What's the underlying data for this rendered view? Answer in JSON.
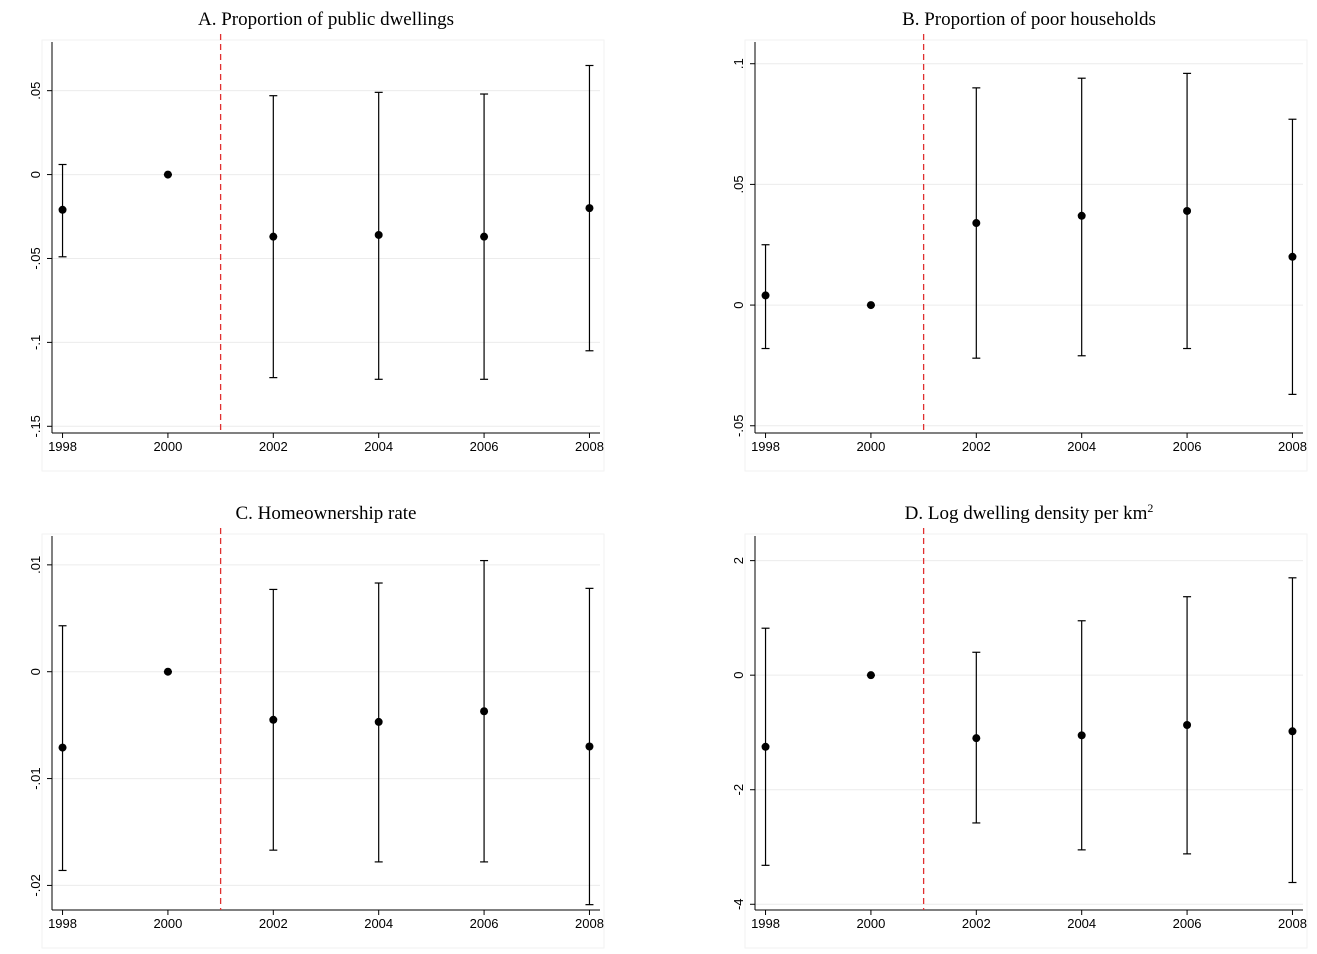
{
  "chart_data": [
    {
      "type": "errorbar",
      "title": "A. Proportion of public dwellings",
      "x": [
        1998,
        2000,
        2002,
        2004,
        2006,
        2008
      ],
      "values": [
        -0.021,
        0,
        -0.037,
        -0.036,
        -0.037,
        -0.02
      ],
      "ci_low": [
        -0.049,
        0,
        -0.121,
        -0.122,
        -0.122,
        -0.105
      ],
      "ci_high": [
        0.006,
        0,
        0.047,
        0.049,
        0.048,
        0.065
      ],
      "color": "#000000",
      "vline": 2001,
      "vline_color": "#e03030",
      "xlim": [
        1997.8,
        2008.2
      ],
      "xticks": [
        1998,
        2000,
        2002,
        2004,
        2006,
        2008
      ],
      "ylim": [
        -0.154,
        0.079
      ],
      "yticks": [
        {
          "value": -0.15,
          "label": "-.15"
        },
        {
          "value": -0.1,
          "label": "-.1"
        },
        {
          "value": -0.05,
          "label": "-.05"
        },
        0,
        {
          "value": 0.05,
          "label": ".05"
        }
      ],
      "grid": true
    },
    {
      "type": "errorbar",
      "title": "B. Proportion of poor households",
      "x": [
        1998,
        2000,
        2002,
        2004,
        2006,
        2008
      ],
      "values": [
        0.004,
        0,
        0.034,
        0.037,
        0.039,
        0.02
      ],
      "ci_low": [
        -0.018,
        0,
        -0.022,
        -0.021,
        -0.018,
        -0.037
      ],
      "ci_high": [
        0.025,
        0,
        0.09,
        0.094,
        0.096,
        0.077
      ],
      "color": "#000000",
      "vline": 2001,
      "vline_color": "#e03030",
      "xlim": [
        1997.8,
        2008.2
      ],
      "xticks": [
        1998,
        2000,
        2002,
        2004,
        2006,
        2008
      ],
      "ylim": [
        -0.053,
        0.109
      ],
      "yticks": [
        {
          "value": -0.05,
          "label": "-.05"
        },
        0,
        {
          "value": 0.05,
          "label": ".05"
        },
        {
          "value": 0.1,
          "label": ".1"
        }
      ],
      "grid": true
    },
    {
      "type": "errorbar",
      "title": "C. Homeownership rate",
      "x": [
        1998,
        2000,
        2002,
        2004,
        2006,
        2008
      ],
      "values": [
        -0.0071,
        0,
        -0.0045,
        -0.0047,
        -0.0037,
        -0.007
      ],
      "ci_low": [
        -0.0186,
        0,
        -0.0167,
        -0.0178,
        -0.0178,
        -0.0218
      ],
      "ci_high": [
        0.0043,
        0,
        0.0077,
        0.0083,
        0.0104,
        0.0078
      ],
      "color": "#000000",
      "vline": 2001,
      "vline_color": "#e03030",
      "xlim": [
        1997.8,
        2008.2
      ],
      "xticks": [
        1998,
        2000,
        2002,
        2004,
        2006,
        2008
      ],
      "ylim": [
        -0.0223,
        0.0127
      ],
      "yticks": [
        {
          "value": -0.02,
          "label": "-.02"
        },
        {
          "value": -0.01,
          "label": "-.01"
        },
        0,
        {
          "value": 0.01,
          "label": ".01"
        }
      ],
      "grid": true
    },
    {
      "type": "errorbar",
      "title": "D. Log dwelling density per km",
      "title_superscript": "2",
      "x": [
        1998,
        2000,
        2002,
        2004,
        2006,
        2008
      ],
      "values": [
        -1.25,
        0,
        -1.1,
        -1.05,
        -0.87,
        -0.98
      ],
      "ci_low": [
        -3.32,
        0,
        -2.58,
        -3.05,
        -3.12,
        -3.62
      ],
      "ci_high": [
        0.82,
        0,
        0.4,
        0.95,
        1.37,
        1.7
      ],
      "color": "#000000",
      "vline": 2001,
      "vline_color": "#e03030",
      "xlim": [
        1997.8,
        2008.2
      ],
      "xticks": [
        1998,
        2000,
        2002,
        2004,
        2006,
        2008
      ],
      "ylim": [
        -4.1,
        2.43
      ],
      "yticks": [
        -4,
        -2,
        0,
        2
      ],
      "grid": true
    }
  ]
}
